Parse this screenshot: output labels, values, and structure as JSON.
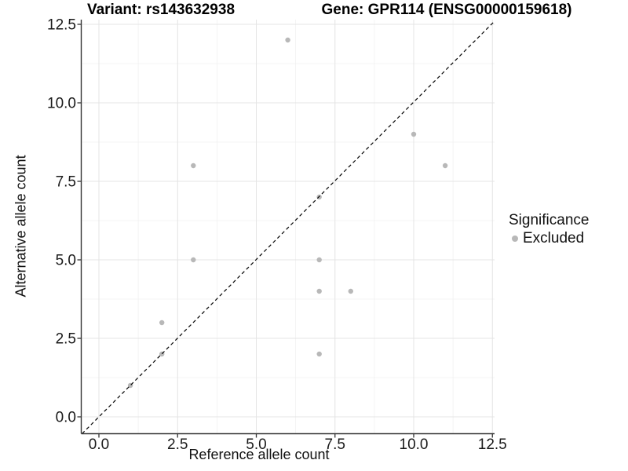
{
  "titles": {
    "variant": "Variant: rs143632938",
    "gene": "Gene: GPR114 (ENSG00000159618)"
  },
  "legend": {
    "title": "Significance",
    "entries": [
      {
        "label": "Excluded",
        "marker_color": "#b8b8b8"
      }
    ]
  },
  "chart_data": {
    "type": "scatter",
    "title_left": "Variant: rs143632938",
    "title_right": "Gene: GPR114 (ENSG00000159618)",
    "xlabel": "Reference allele count",
    "ylabel": "Alternative allele count",
    "xlim": [
      -0.55,
      12.6
    ],
    "ylim": [
      -0.55,
      12.65
    ],
    "grid": "on",
    "legend_position": "right",
    "series": [
      {
        "name": "Excluded",
        "points": [
          [
            6,
            12
          ],
          [
            10,
            9
          ],
          [
            11,
            8
          ],
          [
            3,
            8
          ],
          [
            7,
            7
          ],
          [
            3,
            5
          ],
          [
            7,
            5
          ],
          [
            7,
            4
          ],
          [
            8,
            4
          ],
          [
            2,
            3
          ],
          [
            7,
            2
          ],
          [
            2,
            2
          ],
          [
            1,
            1
          ]
        ]
      }
    ],
    "identity_line": {
      "present": true,
      "style": "dashed",
      "color": "#000000",
      "slope": 1,
      "intercept": 0
    },
    "x_tick_values": [
      0,
      2.5,
      5,
      7.5,
      10,
      12.5
    ],
    "x_tick_labels": [
      "0.0",
      "2.5",
      "5.0",
      "7.5",
      "10.0",
      "12.5"
    ],
    "x_minor_values": [
      1.25,
      3.75,
      6.25,
      8.75,
      11.25
    ],
    "y_tick_values": [
      0,
      2.5,
      5,
      7.5,
      10,
      12.5
    ],
    "y_tick_labels": [
      "0.0",
      "2.5",
      "5.0",
      "7.5",
      "10.0",
      "12.5"
    ],
    "y_minor_values": [
      1.25,
      3.75,
      6.25,
      8.75,
      11.25
    ],
    "point_color": "#b8b8b8",
    "grid_major_color": "#e4e4e4",
    "grid_minor_color": "#f0f0f0",
    "axis_line_color": "#333333",
    "tick_label_color": "#1a1a1a"
  }
}
